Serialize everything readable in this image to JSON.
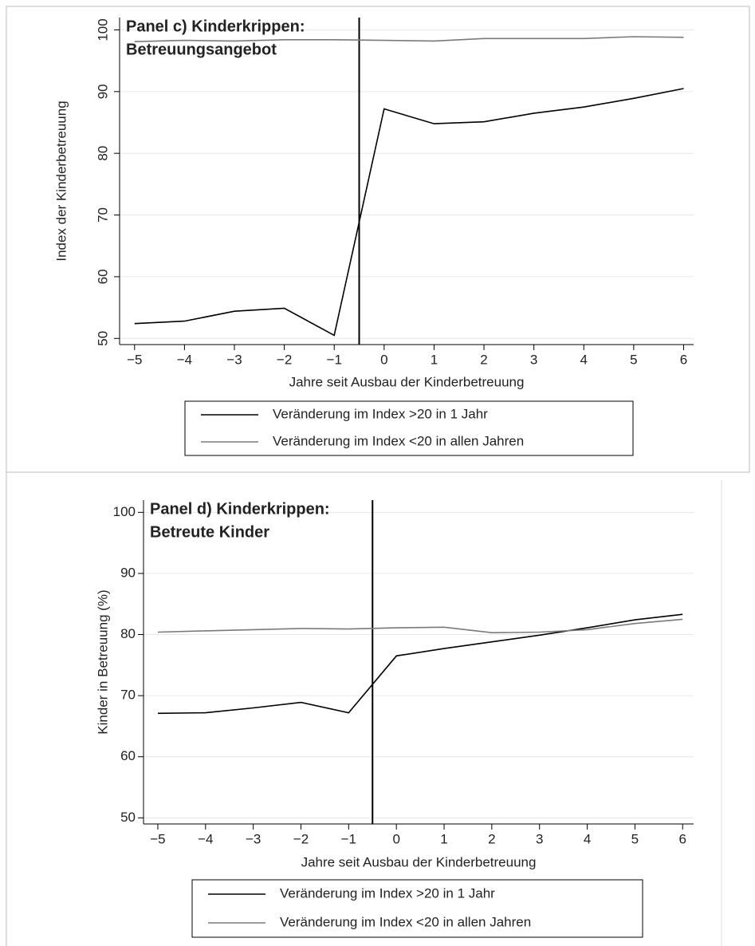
{
  "chart_data": [
    {
      "type": "line",
      "title": [
        "Panel c) Kinderkrippen:",
        "Betreuungsangebot"
      ],
      "x_label": "Jahre seit Ausbau der Kinderbetreuung",
      "y_label": "Index der Kinderbetreuung",
      "x": [
        -5,
        -4,
        -3,
        -2,
        -1,
        0,
        1,
        2,
        3,
        4,
        5,
        6
      ],
      "series": [
        {
          "name": "Veränderung im Index >20 in 1 Jahr",
          "color": "#000000",
          "values": [
            52.4,
            52.8,
            54.4,
            54.9,
            50.5,
            87.2,
            84.8,
            85.1,
            86.5,
            87.5,
            88.9,
            90.5
          ]
        },
        {
          "name": "Veränderung im Index <20 in allen Jahren",
          "color": "#7a7a7a",
          "values": [
            98.1,
            98.3,
            98.2,
            98.4,
            98.4,
            98.3,
            98.2,
            98.6,
            98.6,
            98.6,
            98.9,
            98.8
          ]
        }
      ],
      "vline": -0.5,
      "xlim": [
        -5.3,
        6.2
      ],
      "ylim": [
        49,
        102
      ],
      "xticks": [
        {
          "value": -5,
          "label": "−5"
        },
        {
          "value": -4,
          "label": "−4"
        },
        {
          "value": -3,
          "label": "−3"
        },
        {
          "value": -2,
          "label": "−2"
        },
        {
          "value": -1,
          "label": "−1"
        },
        0,
        1,
        2,
        3,
        4,
        5,
        6
      ],
      "yticks": [
        50,
        60,
        70,
        80,
        90,
        100
      ],
      "grid": true,
      "legend": "bottom"
    },
    {
      "type": "line",
      "title": [
        "Panel d) Kinderkrippen:",
        "Betreute Kinder"
      ],
      "x_label": "Jahre seit Ausbau der Kinderbetreuung",
      "y_label": "Kinder in Betreuung (%)",
      "x": [
        -5,
        -4,
        -3,
        -2,
        -1,
        0,
        1,
        2,
        3,
        4,
        5,
        6
      ],
      "series": [
        {
          "name": "Veränderung im Index >20 in 1 Jahr",
          "color": "#000000",
          "values": [
            67.1,
            67.2,
            68.0,
            68.9,
            67.2,
            76.5,
            77.7,
            78.8,
            79.9,
            81.1,
            82.4,
            83.3
          ]
        },
        {
          "name": "Veränderung im Index <20 in allen Jahren",
          "color": "#7a7a7a",
          "values": [
            80.4,
            80.6,
            80.8,
            81.0,
            80.9,
            81.1,
            81.2,
            80.3,
            80.4,
            80.8,
            81.8,
            82.5
          ]
        }
      ],
      "vline": -0.5,
      "xlim": [
        -5.3,
        6.23
      ],
      "ylim": [
        49,
        102
      ],
      "xticks": [
        {
          "value": -5,
          "label": "−5"
        },
        {
          "value": -4,
          "label": "−4"
        },
        {
          "value": -3,
          "label": "−3"
        },
        {
          "value": -2,
          "label": "−2"
        },
        {
          "value": -1,
          "label": "−1"
        },
        0,
        1,
        2,
        3,
        4,
        5,
        6
      ],
      "yticks": [
        50,
        60,
        70,
        80,
        90,
        100
      ],
      "grid": true,
      "legend": "bottom"
    }
  ]
}
